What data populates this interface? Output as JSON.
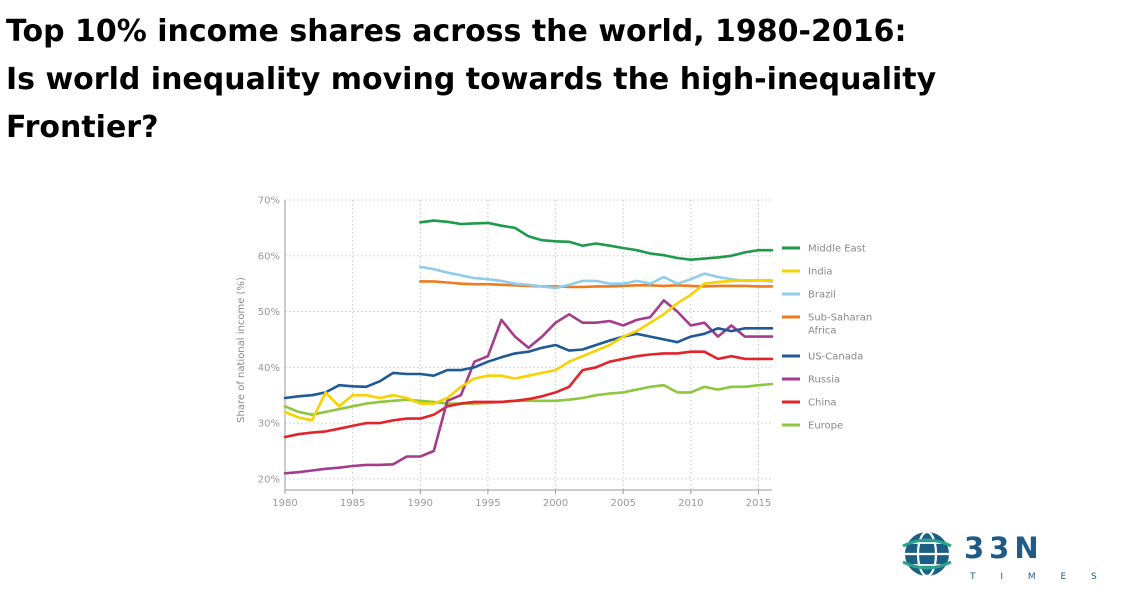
{
  "title_lines": [
    "Top 10% income shares across the world, 1980-2016:",
    "Is world inequality moving towards the high-inequality",
    "Frontier?"
  ],
  "logo": {
    "icon": "globe-icon",
    "wordmark": "33N",
    "subtext": "T I M E S",
    "colors": {
      "globe": "#1c5f86",
      "ring": "#2ba48a",
      "wordmark": "#1f5b86"
    }
  },
  "chart_data": {
    "type": "line",
    "title": "",
    "xlabel": "",
    "ylabel": "Share of national income (%)",
    "xlim": [
      1980,
      2016
    ],
    "ylim": [
      18,
      70
    ],
    "x_ticks": [
      1980,
      1985,
      1990,
      1995,
      2000,
      2005,
      2010,
      2015
    ],
    "x_tick_labels": [
      "1980",
      "1985",
      "1990",
      "1995",
      "2000",
      "2005",
      "2010",
      "2015"
    ],
    "y_ticks": [
      20,
      30,
      40,
      50,
      60,
      70
    ],
    "y_tick_labels": [
      "20%",
      "30%",
      "40%",
      "50%",
      "60%",
      "70%"
    ],
    "grid": "horizontal dotted",
    "legend_position": "right",
    "series": [
      {
        "name": "Middle East",
        "color": "#1e9a4a",
        "x": [
          1990,
          1991,
          1992,
          1993,
          1994,
          1995,
          1996,
          1997,
          1998,
          1999,
          2000,
          2001,
          2002,
          2003,
          2004,
          2005,
          2006,
          2007,
          2008,
          2009,
          2010,
          2011,
          2012,
          2013,
          2014,
          2015,
          2016
        ],
        "values": [
          66.0,
          66.3,
          66.1,
          65.7,
          65.8,
          65.9,
          65.4,
          65.0,
          63.5,
          62.8,
          62.6,
          62.5,
          61.8,
          62.2,
          61.8,
          61.4,
          61.0,
          60.4,
          60.1,
          59.6,
          59.3,
          59.5,
          59.7,
          60.0,
          60.6,
          61.0,
          61.0
        ]
      },
      {
        "name": "India",
        "color": "#f5d200",
        "x": [
          1980,
          1981,
          1982,
          1983,
          1984,
          1985,
          1986,
          1987,
          1988,
          1989,
          1990,
          1991,
          1992,
          1993,
          1994,
          1995,
          1996,
          1997,
          1998,
          1999,
          2000,
          2001,
          2002,
          2003,
          2004,
          2005,
          2006,
          2007,
          2008,
          2009,
          2010,
          2011,
          2012,
          2013,
          2014,
          2015,
          2016
        ],
        "values": [
          32.0,
          31.0,
          30.5,
          35.5,
          33.0,
          35.0,
          35.0,
          34.5,
          35.0,
          34.5,
          33.5,
          33.5,
          34.5,
          36.5,
          38.0,
          38.5,
          38.5,
          38.0,
          38.5,
          39.0,
          39.5,
          41.0,
          42.0,
          43.0,
          44.0,
          45.5,
          46.5,
          48.0,
          49.5,
          51.5,
          53.0,
          55.0,
          55.3,
          55.5,
          55.6,
          55.6,
          55.6
        ]
      },
      {
        "name": "Brazil",
        "color": "#8fcdeb",
        "x": [
          1990,
          1991,
          1992,
          1993,
          1994,
          1995,
          1996,
          1997,
          1998,
          1999,
          2000,
          2001,
          2002,
          2003,
          2004,
          2005,
          2006,
          2007,
          2008,
          2009,
          2010,
          2011,
          2012,
          2013,
          2014,
          2015,
          2016
        ],
        "values": [
          58.0,
          57.6,
          57.0,
          56.5,
          56.0,
          55.8,
          55.5,
          55.0,
          54.8,
          54.5,
          54.2,
          54.8,
          55.5,
          55.5,
          55.0,
          55.0,
          55.5,
          55.0,
          56.2,
          55.0,
          55.8,
          56.8,
          56.2,
          55.8,
          55.5,
          55.6,
          55.4
        ]
      },
      {
        "name": "Sub-Saharan Africa",
        "color": "#ee7a22",
        "x": [
          1990,
          1991,
          1992,
          1993,
          1994,
          1995,
          1996,
          1997,
          1998,
          1999,
          2000,
          2001,
          2002,
          2003,
          2004,
          2005,
          2006,
          2007,
          2008,
          2009,
          2010,
          2011,
          2012,
          2013,
          2014,
          2015,
          2016
        ],
        "values": [
          55.4,
          55.4,
          55.2,
          55.0,
          54.9,
          54.9,
          54.8,
          54.7,
          54.6,
          54.5,
          54.5,
          54.4,
          54.4,
          54.5,
          54.5,
          54.6,
          54.7,
          54.7,
          54.6,
          54.7,
          54.6,
          54.5,
          54.6,
          54.6,
          54.6,
          54.5,
          54.5
        ]
      },
      {
        "name": "US-Canada",
        "color": "#1f5a96",
        "x": [
          1980,
          1981,
          1982,
          1983,
          1984,
          1985,
          1986,
          1987,
          1988,
          1989,
          1990,
          1991,
          1992,
          1993,
          1994,
          1995,
          1996,
          1997,
          1998,
          1999,
          2000,
          2001,
          2002,
          2003,
          2004,
          2005,
          2006,
          2007,
          2008,
          2009,
          2010,
          2011,
          2012,
          2013,
          2014,
          2015,
          2016
        ],
        "values": [
          34.5,
          34.8,
          35.0,
          35.5,
          36.8,
          36.6,
          36.5,
          37.5,
          39.0,
          38.8,
          38.8,
          38.5,
          39.5,
          39.5,
          40.0,
          41.0,
          41.8,
          42.5,
          42.8,
          43.5,
          44.0,
          43.0,
          43.2,
          44.0,
          44.8,
          45.5,
          46.0,
          45.5,
          45.0,
          44.5,
          45.5,
          46.0,
          47.0,
          46.5,
          47.0,
          47.0,
          47.0
        ]
      },
      {
        "name": "Russia",
        "color": "#a43b8c",
        "x": [
          1980,
          1981,
          1982,
          1983,
          1984,
          1985,
          1986,
          1987,
          1988,
          1989,
          1990,
          1991,
          1992,
          1993,
          1994,
          1995,
          1996,
          1997,
          1998,
          1999,
          2000,
          2001,
          2002,
          2003,
          2004,
          2005,
          2006,
          2007,
          2008,
          2009,
          2010,
          2011,
          2012,
          2013,
          2014,
          2015,
          2016
        ],
        "values": [
          21.0,
          21.2,
          21.5,
          21.8,
          22.0,
          22.3,
          22.5,
          22.5,
          22.6,
          24.0,
          24.0,
          25.0,
          34.0,
          35.0,
          41.0,
          42.0,
          48.5,
          45.5,
          43.5,
          45.5,
          48.0,
          49.5,
          48.0,
          48.0,
          48.3,
          47.5,
          48.5,
          49.0,
          52.0,
          50.0,
          47.5,
          48.0,
          45.5,
          47.5,
          45.5,
          45.5,
          45.5
        ]
      },
      {
        "name": "China",
        "color": "#e3222c",
        "x": [
          1980,
          1981,
          1982,
          1983,
          1984,
          1985,
          1986,
          1987,
          1988,
          1989,
          1990,
          1991,
          1992,
          1993,
          1994,
          1995,
          1996,
          1997,
          1998,
          1999,
          2000,
          2001,
          2002,
          2003,
          2004,
          2005,
          2006,
          2007,
          2008,
          2009,
          2010,
          2011,
          2012,
          2013,
          2014,
          2015,
          2016
        ],
        "values": [
          27.5,
          28.0,
          28.3,
          28.5,
          29.0,
          29.5,
          30.0,
          30.0,
          30.5,
          30.8,
          30.8,
          31.5,
          33.0,
          33.5,
          33.8,
          33.8,
          33.8,
          34.0,
          34.3,
          34.8,
          35.5,
          36.5,
          39.5,
          40.0,
          41.0,
          41.5,
          42.0,
          42.3,
          42.5,
          42.5,
          42.8,
          42.8,
          41.5,
          42.0,
          41.5,
          41.5,
          41.5
        ]
      },
      {
        "name": "Europe",
        "color": "#8dc63f",
        "x": [
          1980,
          1981,
          1982,
          1983,
          1984,
          1985,
          1986,
          1987,
          1988,
          1989,
          1990,
          1991,
          1992,
          1993,
          1994,
          1995,
          1996,
          1997,
          1998,
          1999,
          2000,
          2001,
          2002,
          2003,
          2004,
          2005,
          2006,
          2007,
          2008,
          2009,
          2010,
          2011,
          2012,
          2013,
          2014,
          2015,
          2016
        ],
        "values": [
          33.0,
          32.0,
          31.5,
          32.0,
          32.5,
          33.0,
          33.5,
          33.8,
          34.0,
          34.2,
          34.0,
          33.8,
          33.5,
          33.5,
          33.5,
          33.6,
          33.8,
          34.0,
          34.0,
          34.0,
          34.0,
          34.2,
          34.5,
          35.0,
          35.3,
          35.5,
          36.0,
          36.5,
          36.8,
          35.5,
          35.5,
          36.5,
          36.0,
          36.5,
          36.5,
          36.8,
          37.0
        ]
      }
    ]
  }
}
